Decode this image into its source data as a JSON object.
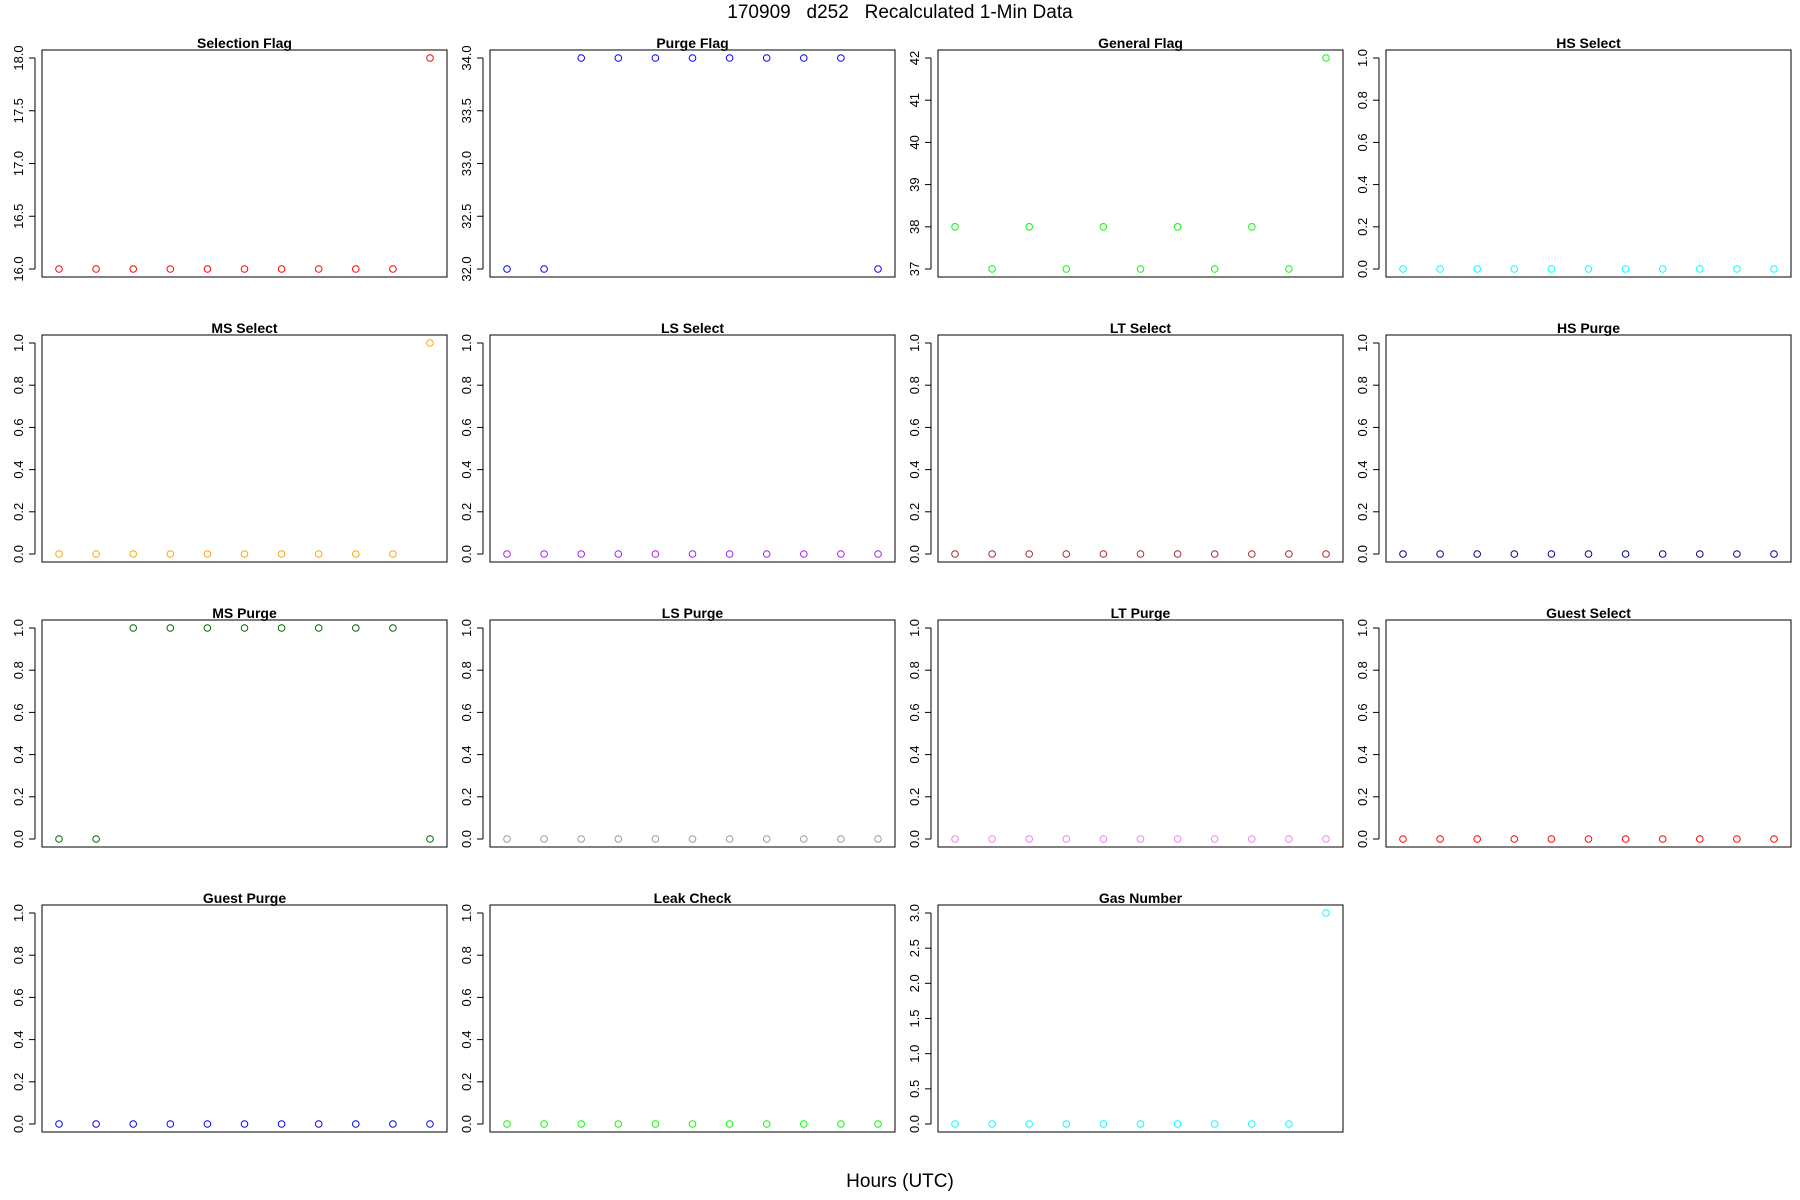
{
  "figure": {
    "title": "170909   d252   Recalculated 1-Min Data",
    "xlabel": "Hours (UTC)"
  },
  "chart_data": [
    {
      "type": "scatter",
      "title": "Selection Flag",
      "color": "#ff0000",
      "ylim": [
        16.0,
        18.0
      ],
      "yticks": [
        "16.0",
        "16.5",
        "17.0",
        "17.5",
        "18.0"
      ],
      "x": [
        1,
        2,
        3,
        4,
        5,
        6,
        7,
        8,
        9,
        10,
        11
      ],
      "y": [
        16,
        16,
        16,
        16,
        16,
        16,
        16,
        16,
        16,
        16,
        18
      ]
    },
    {
      "type": "scatter",
      "title": "Purge Flag",
      "color": "#0000ff",
      "ylim": [
        32.0,
        34.0
      ],
      "yticks": [
        "32.0",
        "32.5",
        "33.0",
        "33.5",
        "34.0"
      ],
      "x": [
        1,
        2,
        3,
        4,
        5,
        6,
        7,
        8,
        9,
        10,
        11
      ],
      "y": [
        32,
        32,
        34,
        34,
        34,
        34,
        34,
        34,
        34,
        34,
        32
      ]
    },
    {
      "type": "scatter",
      "title": "General Flag",
      "color": "#00ff00",
      "ylim": [
        37,
        42
      ],
      "yticks": [
        "37",
        "38",
        "39",
        "40",
        "41",
        "42"
      ],
      "x": [
        1,
        2,
        3,
        4,
        5,
        6,
        7,
        8,
        9,
        10,
        11
      ],
      "y": [
        38,
        37,
        38,
        37,
        38,
        37,
        38,
        37,
        38,
        37,
        42
      ]
    },
    {
      "type": "scatter",
      "title": "HS Select",
      "color": "#00ffff",
      "ylim": [
        0.0,
        1.0
      ],
      "yticks": [
        "0.0",
        "0.2",
        "0.4",
        "0.6",
        "0.8",
        "1.0"
      ],
      "x": [
        1,
        2,
        3,
        4,
        5,
        6,
        7,
        8,
        9,
        10,
        11
      ],
      "y": [
        0,
        0,
        0,
        0,
        0,
        0,
        0,
        0,
        0,
        0,
        0
      ]
    },
    {
      "type": "scatter",
      "title": "MS Select",
      "color": "#ffa500",
      "ylim": [
        0.0,
        1.0
      ],
      "yticks": [
        "0.0",
        "0.2",
        "0.4",
        "0.6",
        "0.8",
        "1.0"
      ],
      "x": [
        1,
        2,
        3,
        4,
        5,
        6,
        7,
        8,
        9,
        10,
        11
      ],
      "y": [
        0,
        0,
        0,
        0,
        0,
        0,
        0,
        0,
        0,
        0,
        1
      ]
    },
    {
      "type": "scatter",
      "title": "LS Select",
      "color": "#a020f0",
      "ylim": [
        0.0,
        1.0
      ],
      "yticks": [
        "0.0",
        "0.2",
        "0.4",
        "0.6",
        "0.8",
        "1.0"
      ],
      "x": [
        1,
        2,
        3,
        4,
        5,
        6,
        7,
        8,
        9,
        10,
        11
      ],
      "y": [
        0,
        0,
        0,
        0,
        0,
        0,
        0,
        0,
        0,
        0,
        0
      ]
    },
    {
      "type": "scatter",
      "title": "LT Select",
      "color": "#a52a2a",
      "ylim": [
        0.0,
        1.0
      ],
      "yticks": [
        "0.0",
        "0.2",
        "0.4",
        "0.6",
        "0.8",
        "1.0"
      ],
      "x": [
        1,
        2,
        3,
        4,
        5,
        6,
        7,
        8,
        9,
        10,
        11
      ],
      "y": [
        0,
        0,
        0,
        0,
        0,
        0,
        0,
        0,
        0,
        0,
        0
      ]
    },
    {
      "type": "scatter",
      "title": "HS Purge",
      "color": "#00008b",
      "ylim": [
        0.0,
        1.0
      ],
      "yticks": [
        "0.0",
        "0.2",
        "0.4",
        "0.6",
        "0.8",
        "1.0"
      ],
      "x": [
        1,
        2,
        3,
        4,
        5,
        6,
        7,
        8,
        9,
        10,
        11
      ],
      "y": [
        0,
        0,
        0,
        0,
        0,
        0,
        0,
        0,
        0,
        0,
        0
      ]
    },
    {
      "type": "scatter",
      "title": "MS Purge",
      "color": "#006400",
      "ylim": [
        0.0,
        1.0
      ],
      "yticks": [
        "0.0",
        "0.2",
        "0.4",
        "0.6",
        "0.8",
        "1.0"
      ],
      "x": [
        1,
        2,
        3,
        4,
        5,
        6,
        7,
        8,
        9,
        10,
        11
      ],
      "y": [
        0,
        0,
        1,
        1,
        1,
        1,
        1,
        1,
        1,
        1,
        0
      ]
    },
    {
      "type": "scatter",
      "title": "LS Purge",
      "color": "#999999",
      "ylim": [
        0.0,
        1.0
      ],
      "yticks": [
        "0.0",
        "0.2",
        "0.4",
        "0.6",
        "0.8",
        "1.0"
      ],
      "x": [
        1,
        2,
        3,
        4,
        5,
        6,
        7,
        8,
        9,
        10,
        11
      ],
      "y": [
        0,
        0,
        0,
        0,
        0,
        0,
        0,
        0,
        0,
        0,
        0
      ]
    },
    {
      "type": "scatter",
      "title": "LT Purge",
      "color": "#ee82ee",
      "ylim": [
        0.0,
        1.0
      ],
      "yticks": [
        "0.0",
        "0.2",
        "0.4",
        "0.6",
        "0.8",
        "1.0"
      ],
      "x": [
        1,
        2,
        3,
        4,
        5,
        6,
        7,
        8,
        9,
        10,
        11
      ],
      "y": [
        0,
        0,
        0,
        0,
        0,
        0,
        0,
        0,
        0,
        0,
        0
      ]
    },
    {
      "type": "scatter",
      "title": "Guest Select",
      "color": "#ff0000",
      "ylim": [
        0.0,
        1.0
      ],
      "yticks": [
        "0.0",
        "0.2",
        "0.4",
        "0.6",
        "0.8",
        "1.0"
      ],
      "x": [
        1,
        2,
        3,
        4,
        5,
        6,
        7,
        8,
        9,
        10,
        11
      ],
      "y": [
        0,
        0,
        0,
        0,
        0,
        0,
        0,
        0,
        0,
        0,
        0
      ]
    },
    {
      "type": "scatter",
      "title": "Guest Purge",
      "color": "#0000ff",
      "ylim": [
        0.0,
        1.0
      ],
      "yticks": [
        "0.0",
        "0.2",
        "0.4",
        "0.6",
        "0.8",
        "1.0"
      ],
      "x": [
        1,
        2,
        3,
        4,
        5,
        6,
        7,
        8,
        9,
        10,
        11
      ],
      "y": [
        0,
        0,
        0,
        0,
        0,
        0,
        0,
        0,
        0,
        0,
        0
      ]
    },
    {
      "type": "scatter",
      "title": "Leak Check",
      "color": "#00ff00",
      "ylim": [
        0.0,
        1.0
      ],
      "yticks": [
        "0.0",
        "0.2",
        "0.4",
        "0.6",
        "0.8",
        "1.0"
      ],
      "x": [
        1,
        2,
        3,
        4,
        5,
        6,
        7,
        8,
        9,
        10,
        11
      ],
      "y": [
        0,
        0,
        0,
        0,
        0,
        0,
        0,
        0,
        0,
        0,
        0
      ]
    },
    {
      "type": "scatter",
      "title": "Gas Number",
      "color": "#00ffff",
      "ylim": [
        0.0,
        3.0
      ],
      "yticks": [
        "0.0",
        "0.5",
        "1.0",
        "1.5",
        "2.0",
        "2.5",
        "3.0"
      ],
      "x": [
        1,
        2,
        3,
        4,
        5,
        6,
        7,
        8,
        9,
        10,
        11
      ],
      "y": [
        0,
        0,
        0,
        0,
        0,
        0,
        0,
        0,
        0,
        0,
        3
      ]
    }
  ]
}
